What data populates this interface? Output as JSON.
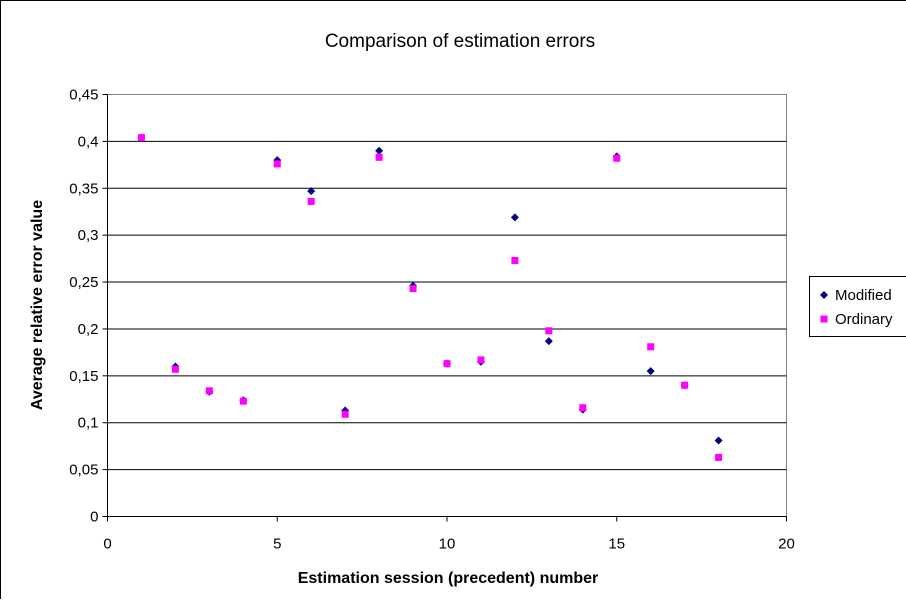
{
  "chart_data": {
    "type": "scatter",
    "title": "Comparison of estimation errors",
    "xlabel": "Estimation session (precedent) number",
    "ylabel": "Average relative error value",
    "xlim": [
      0,
      20
    ],
    "ylim": [
      0,
      0.45
    ],
    "x_ticks": [
      "0",
      "5",
      "10",
      "15",
      "20"
    ],
    "y_ticks": [
      "0",
      "0,05",
      "0,1",
      "0,15",
      "0,2",
      "0,25",
      "0,3",
      "0,35",
      "0,4",
      "0,45"
    ],
    "grid": "horizontal",
    "legend_position": "right",
    "series": [
      {
        "name": "Modified",
        "marker": "diamond",
        "color": "#000080",
        "x": [
          1,
          2,
          3,
          4,
          5,
          6,
          7,
          8,
          9,
          10,
          11,
          12,
          13,
          14,
          15,
          16,
          17,
          18
        ],
        "y": [
          0.404,
          0.16,
          0.133,
          0.124,
          0.38,
          0.347,
          0.113,
          0.39,
          0.246,
          0.163,
          0.165,
          0.319,
          0.187,
          0.114,
          0.384,
          0.155,
          0.14,
          0.081
        ]
      },
      {
        "name": "Ordinary",
        "marker": "square",
        "color": "#FF00FF",
        "x": [
          1,
          2,
          3,
          4,
          5,
          6,
          7,
          8,
          9,
          10,
          11,
          12,
          13,
          14,
          15,
          16,
          17,
          18
        ],
        "y": [
          0.404,
          0.157,
          0.134,
          0.123,
          0.376,
          0.336,
          0.109,
          0.383,
          0.243,
          0.163,
          0.167,
          0.273,
          0.198,
          0.116,
          0.382,
          0.181,
          0.14,
          0.063
        ]
      }
    ]
  }
}
